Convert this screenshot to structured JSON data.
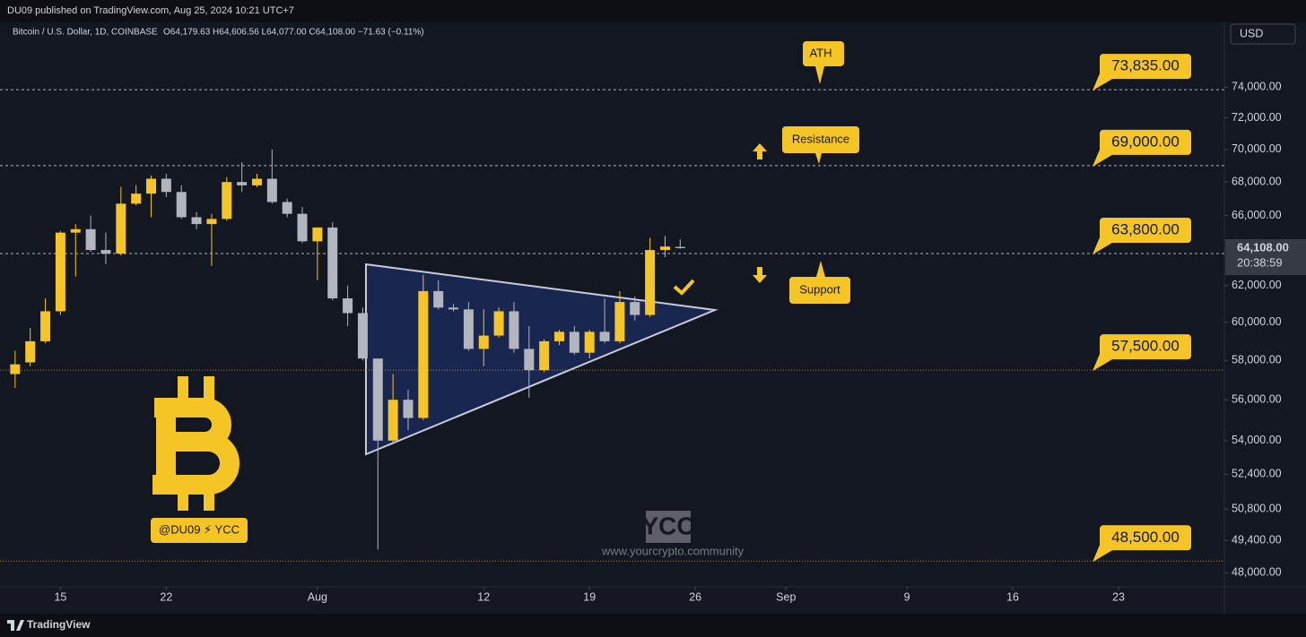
{
  "header": "DU09 published on TradingView.com, Aug 25, 2024 10:21 UTC+7",
  "footer": "TradingView",
  "chart_data": {
    "type": "candlestick",
    "symbol_info": "Bitcoin / U.S. Dollar, 1D, COINBASE",
    "ohlc_text": "O64,179.63 H64,606.56 L64,077.00 C64,108.00 −71.63 (−0.11%)",
    "currency": "USD",
    "up_color": "#f5c525",
    "down_color": "#b2b5be",
    "log_scale": true,
    "grid": false,
    "x": [
      "2024-07-12",
      "2024-07-13",
      "2024-07-14",
      "2024-07-15",
      "2024-07-16",
      "2024-07-17",
      "2024-07-18",
      "2024-07-19",
      "2024-07-20",
      "2024-07-21",
      "2024-07-22",
      "2024-07-23",
      "2024-07-24",
      "2024-07-25",
      "2024-07-26",
      "2024-07-27",
      "2024-07-28",
      "2024-07-29",
      "2024-07-30",
      "2024-07-31",
      "2024-08-01",
      "2024-08-02",
      "2024-08-03",
      "2024-08-04",
      "2024-08-05",
      "2024-08-06",
      "2024-08-07",
      "2024-08-08",
      "2024-08-09",
      "2024-08-10",
      "2024-08-11",
      "2024-08-12",
      "2024-08-13",
      "2024-08-14",
      "2024-08-15",
      "2024-08-16",
      "2024-08-17",
      "2024-08-18",
      "2024-08-19",
      "2024-08-20",
      "2024-08-21",
      "2024-08-22",
      "2024-08-23",
      "2024-08-24",
      "2024-08-25"
    ],
    "open": [
      57300,
      57900,
      59000,
      60600,
      65000,
      65200,
      64000,
      63800,
      66700,
      67300,
      68200,
      67400,
      65900,
      65500,
      65800,
      68000,
      67800,
      68200,
      66800,
      66100,
      64500,
      65300,
      61300,
      60500,
      58100,
      54000,
      56000,
      55100,
      61700,
      60800,
      60700,
      58600,
      59300,
      60600,
      58600,
      57500,
      59000,
      59500,
      58400,
      59500,
      59000,
      61100,
      60400,
      64000,
      64179.63
    ],
    "high": [
      58500,
      59700,
      61300,
      65100,
      65500,
      66000,
      65000,
      67700,
      67800,
      68400,
      68500,
      67800,
      66200,
      66100,
      68300,
      69200,
      68500,
      70000,
      67000,
      66500,
      65300,
      65600,
      62000,
      60800,
      58100,
      57300,
      56500,
      62600,
      62300,
      61000,
      61100,
      60700,
      60800,
      61100,
      59800,
      59100,
      59600,
      59800,
      59600,
      61300,
      61700,
      61400,
      64700,
      64800,
      64606.56
    ],
    "low": [
      56600,
      57700,
      58900,
      60400,
      62500,
      63900,
      63200,
      63700,
      66600,
      65900,
      67100,
      65800,
      65200,
      63100,
      65700,
      67400,
      67700,
      66700,
      65900,
      64400,
      62300,
      61200,
      59800,
      58000,
      49000,
      53900,
      54500,
      55000,
      60700,
      60600,
      58500,
      57700,
      59200,
      58400,
      56100,
      57400,
      58800,
      58300,
      58100,
      58900,
      58900,
      60100,
      60300,
      63600,
      64077
    ],
    "close": [
      57800,
      59000,
      60600,
      65000,
      65200,
      64000,
      63800,
      66700,
      67300,
      68200,
      67400,
      65900,
      65500,
      65800,
      68000,
      67800,
      68200,
      66800,
      66100,
      64500,
      65300,
      61300,
      60500,
      58100,
      54000,
      56000,
      55100,
      61700,
      60800,
      60700,
      58600,
      59300,
      60600,
      58600,
      57500,
      59000,
      59500,
      58400,
      59500,
      59000,
      61100,
      60400,
      64000,
      64200,
      64108
    ],
    "xlim": [
      "2024-07-11",
      "2024-09-30"
    ],
    "xticks": [
      {
        "value": "2024-07-15",
        "label": "15"
      },
      {
        "value": "2024-07-22",
        "label": "22"
      },
      {
        "value": "2024-08-01",
        "label": "Aug"
      },
      {
        "value": "2024-08-12",
        "label": "12"
      },
      {
        "value": "2024-08-19",
        "label": "19"
      },
      {
        "value": "2024-08-26",
        "label": "26"
      },
      {
        "value": "2024-09-01",
        "label": "Sep"
      },
      {
        "value": "2024-09-09",
        "label": "9"
      },
      {
        "value": "2024-09-16",
        "label": "16"
      },
      {
        "value": "2024-09-23",
        "label": "23"
      }
    ],
    "ylim": [
      47400,
      78400
    ],
    "yticks": [
      {
        "value": 48000,
        "label": "48,000.00"
      },
      {
        "value": 49400,
        "label": "49,400.00"
      },
      {
        "value": 50800,
        "label": "50,800.00"
      },
      {
        "value": 52400,
        "label": "52,400.00"
      },
      {
        "value": 54000,
        "label": "54,000.00"
      },
      {
        "value": 56000,
        "label": "56,000.00"
      },
      {
        "value": 58000,
        "label": "58,000.00"
      },
      {
        "value": 60000,
        "label": "60,000.00"
      },
      {
        "value": 62000,
        "label": "62,000.00"
      },
      {
        "value": 64000,
        "label": "64,000.00"
      },
      {
        "value": 66000,
        "label": "66,000.00"
      },
      {
        "value": 68000,
        "label": "68,000.00"
      },
      {
        "value": 70000,
        "label": "70,000.00"
      },
      {
        "value": 72000,
        "label": "72,000.00"
      },
      {
        "value": 74000,
        "label": "74,000.00"
      }
    ],
    "levels": [
      {
        "value": 73835,
        "label": "73,835.00",
        "style": "dashed"
      },
      {
        "value": 69000,
        "label": "69,000.00",
        "style": "dashed"
      },
      {
        "value": 63800,
        "label": "63,800.00",
        "style": "dashed"
      },
      {
        "value": 57500,
        "label": "57,500.00",
        "style": "dotted"
      },
      {
        "value": 48500,
        "label": "48,500.00",
        "style": "dotted"
      }
    ],
    "last_price": {
      "value": 64108,
      "label": "64,108.00"
    },
    "countdown": "20:38:59",
    "annotations": [
      "ATH",
      "Resistance",
      "Support"
    ],
    "watermark": {
      "handle": "@DU09 ⚡ YCC",
      "logo": "YCC",
      "url": "www.yourcrypto.community"
    }
  }
}
